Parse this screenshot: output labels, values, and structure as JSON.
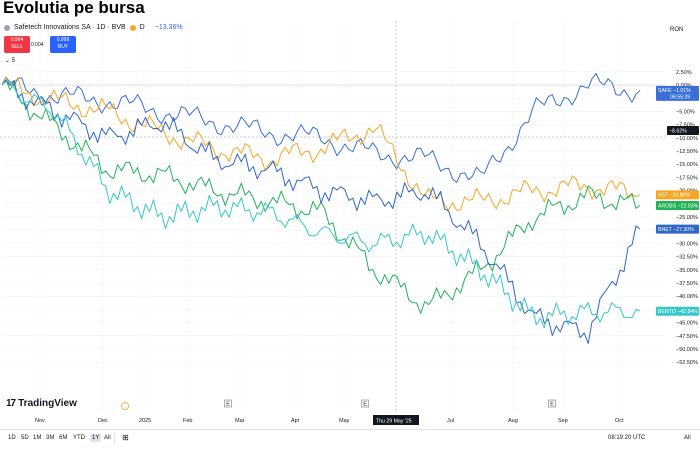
{
  "page": {
    "heading": "Evolutia pe bursa"
  },
  "legend": {
    "symbol": "Safetech Innovations SA · 1D · BVB",
    "open_marker": "D",
    "change": "−13.36%",
    "currency": "RON",
    "sell_price": "0.994",
    "sell_label": "SELL",
    "spread": "0.004",
    "buy_price": "0.998",
    "buy_label": "BUY",
    "collapse_count": "5"
  },
  "colors": {
    "safe": "#3a6fd8",
    "ast": "#f5a623",
    "arobs": "#22b256",
    "bnet": "#2f66c8",
    "bento": "#37c7c9",
    "last": "#131722"
  },
  "y_axis": {
    "ticks": [
      "2.50%",
      "0.00%",
      "−2.50%",
      "−5.00%",
      "−7.50%",
      "−10.00%",
      "−12.50%",
      "−15.00%",
      "−17.50%",
      "−20.00%",
      "−22.50%",
      "−25.00%",
      "−27.50%",
      "−30.00%",
      "−32.50%",
      "−35.00%",
      "−37.50%",
      "−40.00%",
      "−42.50%",
      "−45.00%",
      "−47.50%",
      "−50.00%",
      "−52.50%"
    ]
  },
  "x_axis": {
    "ticks": [
      "Nov",
      "Dec",
      "2025",
      "Feb",
      "Mar",
      "Apr",
      "May",
      "Jul",
      "Aug",
      "Sep",
      "Oct"
    ],
    "crosshair_label": "Thu 29 May '25",
    "event_markers": [
      "E",
      "E",
      "E"
    ]
  },
  "price_tags": {
    "safe": {
      "label": "SAFE",
      "value": "−1.01%",
      "countdown": "06:55:39"
    },
    "last": {
      "value": "−8.62%"
    },
    "ast": {
      "label": "AST",
      "value": "−20.80%"
    },
    "arobs": {
      "label": "AROBS",
      "value": "−22.83%"
    },
    "bnet": {
      "label": "BNET",
      "value": "−27.30%"
    },
    "bento": {
      "label": "BENTO",
      "value": "−42.84%"
    }
  },
  "chart_data": {
    "type": "line",
    "title": "Safetech Innovations SA · 1D · BVB",
    "ylabel": "Change (%)",
    "ylim": [
      -53,
      4
    ],
    "x": [
      "Oct'24",
      "Nov",
      "Dec",
      "Jan'25",
      "Feb",
      "Mar",
      "Apr",
      "May",
      "Jun",
      "Jul",
      "Aug",
      "Sep",
      "Oct"
    ],
    "series": [
      {
        "name": "SAFE",
        "values": [
          0,
          -2,
          -3,
          -5,
          -7,
          -9,
          -10,
          -13,
          -14,
          -18,
          -5,
          0,
          -1.01
        ]
      },
      {
        "name": "AST",
        "values": [
          0,
          -3,
          -5,
          -9,
          -12,
          -14,
          -12,
          -8,
          -22,
          -22,
          -20,
          -19,
          -20.8
        ]
      },
      {
        "name": "AROBS",
        "values": [
          0,
          -8,
          -16,
          -17,
          -20,
          -22,
          -24,
          -35,
          -42,
          -35,
          -25,
          -21,
          -22.83
        ]
      },
      {
        "name": "BNET",
        "values": [
          0,
          -5,
          -10,
          -7,
          -14,
          -16,
          -20,
          -22,
          -20,
          -30,
          -44,
          -47,
          -27.3
        ]
      },
      {
        "name": "BENTO",
        "values": [
          0,
          -5,
          -20,
          -25,
          -23,
          -24,
          -28,
          -30,
          -28,
          -35,
          -44,
          -43,
          -42.84
        ]
      }
    ]
  },
  "branding": {
    "name": "TradingView"
  },
  "bottom_bar": {
    "ranges": [
      "1D",
      "5D",
      "1M",
      "3M",
      "6M",
      "YTD",
      "1Y",
      "All"
    ],
    "active_range": "1Y",
    "clock": "08:19:20 UTC",
    "all_label": "All"
  }
}
